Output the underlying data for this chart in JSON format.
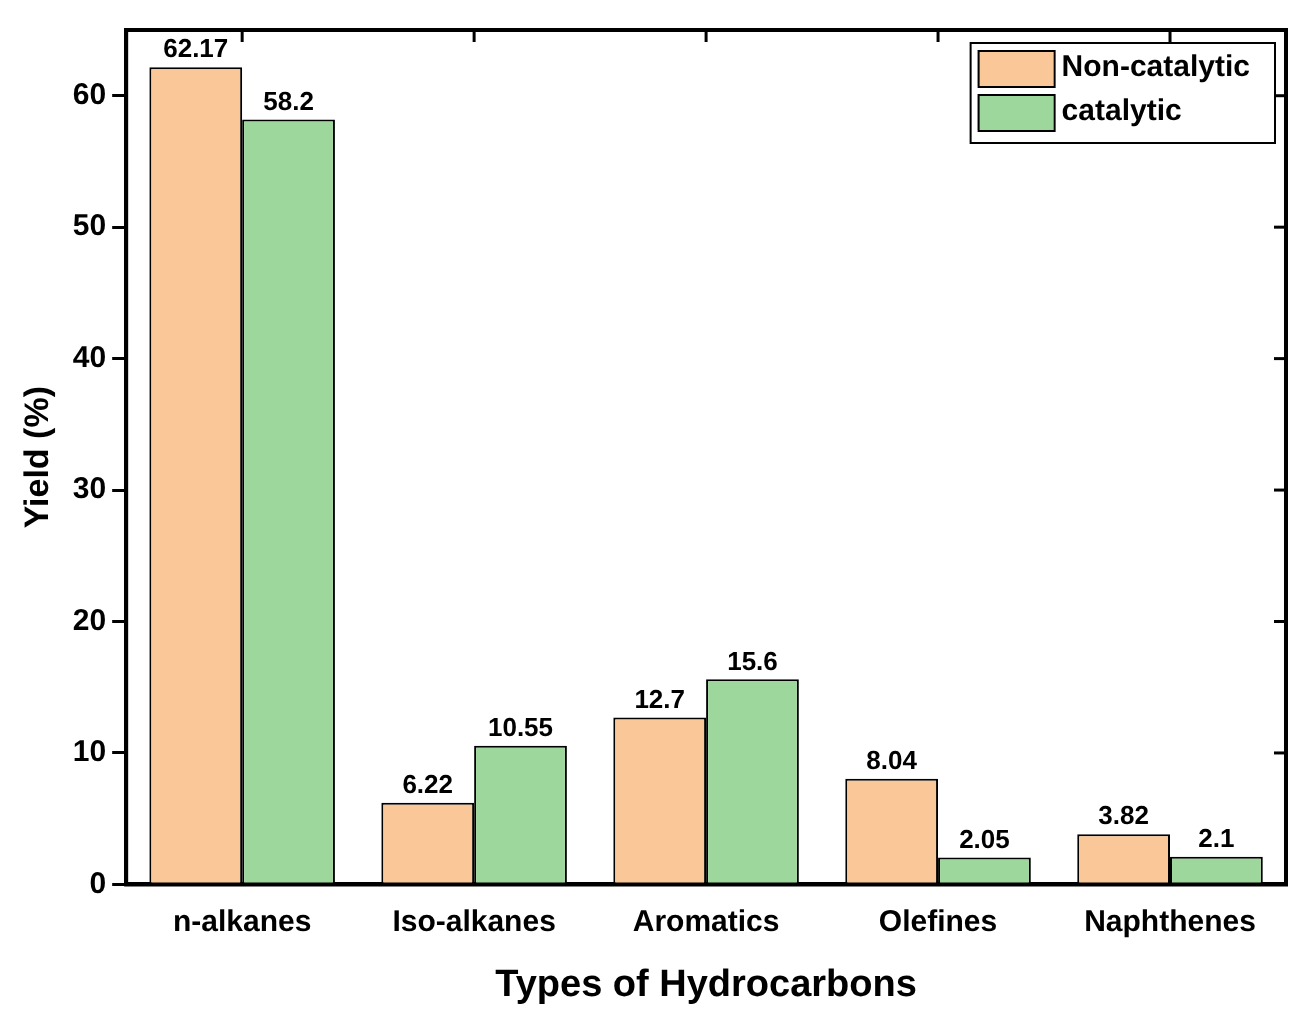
{
  "chart_data": {
    "type": "bar",
    "xlabel": "Types of Hydrocarbons",
    "ylabel": "Yield (%)",
    "categories": [
      "n-alkanes",
      "Iso-alkanes",
      "Aromatics",
      "Olefines",
      "Naphthenes"
    ],
    "series": [
      {
        "name": "Non-catalytic",
        "color": "#fac898",
        "values": [
          62.17,
          6.22,
          12.7,
          8.04,
          3.82
        ]
      },
      {
        "name": "catalytic",
        "color": "#9ed79c",
        "values": [
          58.2,
          10.55,
          15.6,
          2.05,
          2.1
        ]
      }
    ],
    "ylim": [
      0,
      65
    ],
    "yticks": [
      0,
      10,
      20,
      30,
      40,
      50,
      60
    ],
    "grid": false,
    "legend": "top right",
    "data_labels": true
  }
}
